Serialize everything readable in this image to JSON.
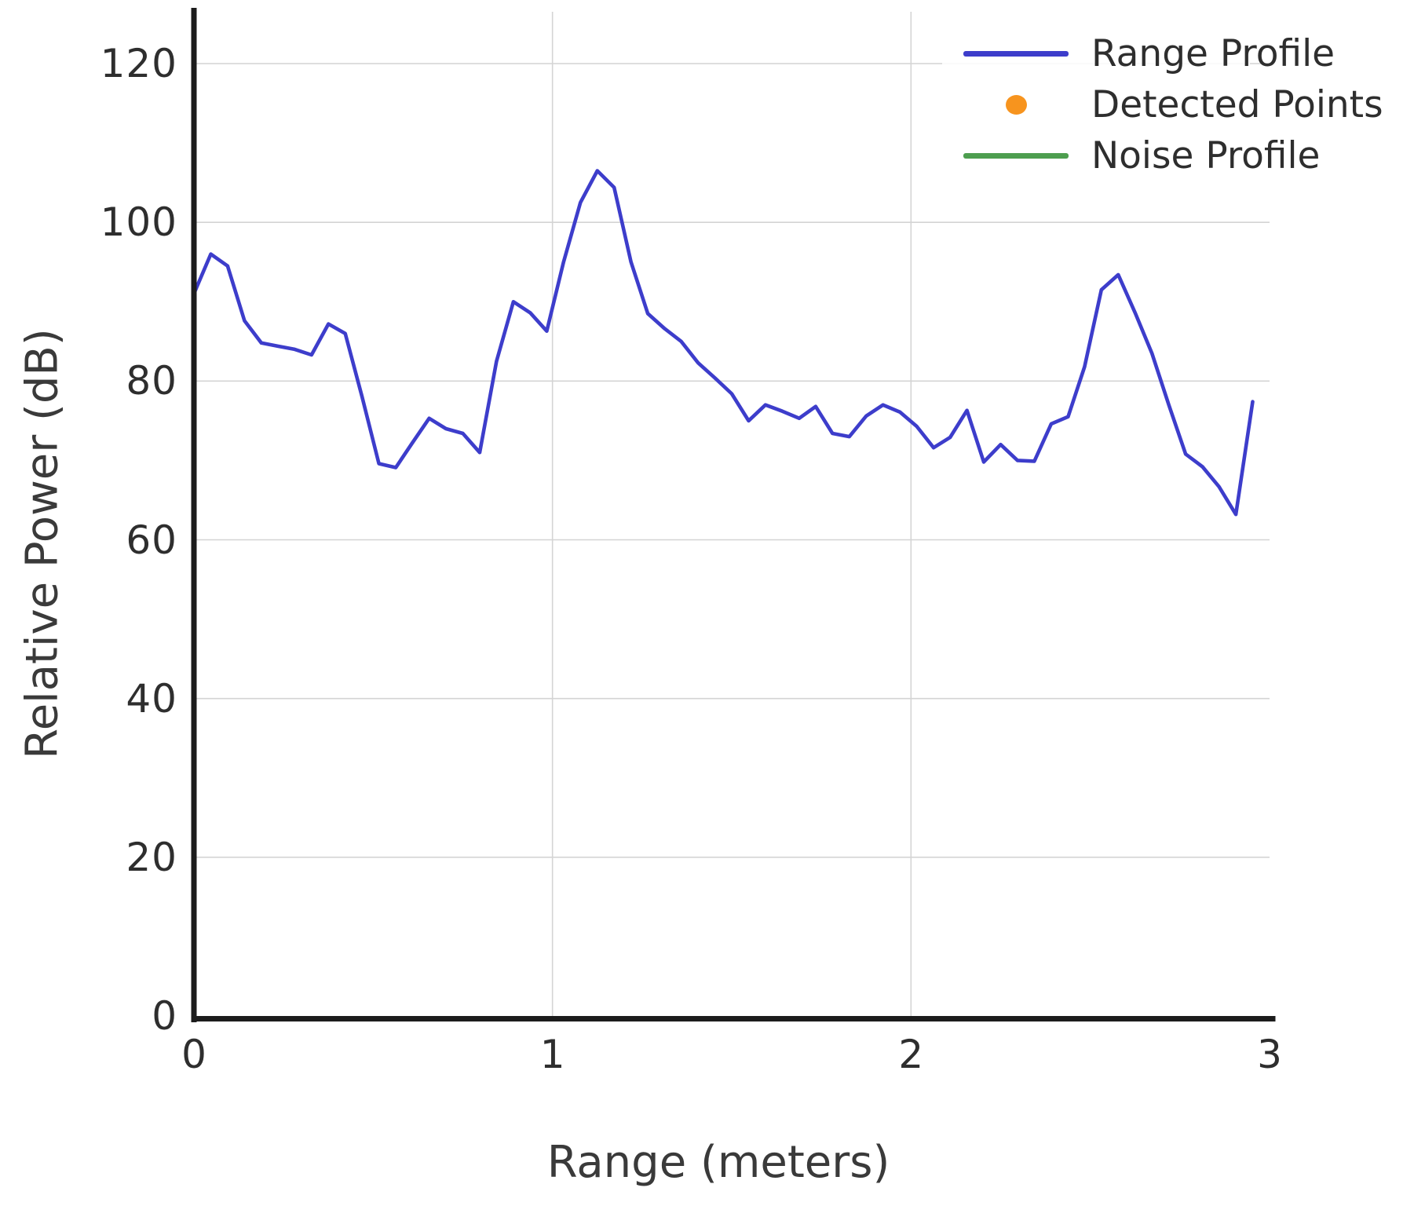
{
  "chart_data": {
    "type": "line",
    "title": "",
    "xlabel": "Range (meters)",
    "ylabel": "Relative Power (dB)",
    "xlim": [
      0,
      3
    ],
    "ylim": [
      0,
      126
    ],
    "xticks": [
      "0",
      "1",
      "2",
      "3"
    ],
    "xtick_values": [
      0,
      1,
      2,
      3
    ],
    "yticks": [
      "0",
      "20",
      "40",
      "60",
      "80",
      "100",
      "120"
    ],
    "ytick_values": [
      0,
      20,
      40,
      60,
      80,
      100,
      120
    ],
    "grid": true,
    "legend_position": "top-right",
    "legend": [
      {
        "label": "Range Profile",
        "type": "line",
        "color": "#3d3dcb"
      },
      {
        "label": "Detected Points",
        "type": "dot",
        "color": "#f7941e"
      },
      {
        "label": "Noise Profile",
        "type": "line",
        "color": "#4d9e4f"
      }
    ],
    "series": [
      {
        "name": "Range Profile",
        "color": "#3d3dcb",
        "points": [
          [
            0.0,
            91.0
          ],
          [
            0.047,
            96.0
          ],
          [
            0.094,
            94.5
          ],
          [
            0.141,
            87.6
          ],
          [
            0.188,
            84.8
          ],
          [
            0.234,
            84.4
          ],
          [
            0.281,
            84.0
          ],
          [
            0.328,
            83.3
          ],
          [
            0.375,
            87.2
          ],
          [
            0.422,
            86.0
          ],
          [
            0.469,
            78.0
          ],
          [
            0.516,
            69.6
          ],
          [
            0.563,
            69.1
          ],
          [
            0.609,
            72.2
          ],
          [
            0.656,
            75.3
          ],
          [
            0.703,
            74.0
          ],
          [
            0.75,
            73.4
          ],
          [
            0.797,
            71.0
          ],
          [
            0.844,
            82.5
          ],
          [
            0.891,
            90.0
          ],
          [
            0.938,
            88.6
          ],
          [
            0.984,
            86.3
          ],
          [
            1.031,
            95.0
          ],
          [
            1.078,
            102.5
          ],
          [
            1.125,
            106.5
          ],
          [
            1.172,
            104.4
          ],
          [
            1.219,
            95.0
          ],
          [
            1.266,
            88.5
          ],
          [
            1.313,
            86.6
          ],
          [
            1.359,
            85.0
          ],
          [
            1.406,
            82.3
          ],
          [
            1.453,
            80.4
          ],
          [
            1.5,
            78.4
          ],
          [
            1.547,
            75.0
          ],
          [
            1.594,
            77.0
          ],
          [
            1.641,
            76.2
          ],
          [
            1.688,
            75.3
          ],
          [
            1.734,
            76.8
          ],
          [
            1.781,
            73.4
          ],
          [
            1.828,
            73.0
          ],
          [
            1.875,
            75.6
          ],
          [
            1.922,
            77.0
          ],
          [
            1.969,
            76.1
          ],
          [
            2.016,
            74.3
          ],
          [
            2.063,
            71.6
          ],
          [
            2.109,
            72.9
          ],
          [
            2.156,
            76.3
          ],
          [
            2.203,
            69.8
          ],
          [
            2.25,
            72.0
          ],
          [
            2.297,
            70.0
          ],
          [
            2.344,
            69.9
          ],
          [
            2.391,
            74.6
          ],
          [
            2.438,
            75.5
          ],
          [
            2.484,
            81.8
          ],
          [
            2.531,
            91.5
          ],
          [
            2.578,
            93.4
          ],
          [
            2.625,
            88.6
          ],
          [
            2.672,
            83.5
          ],
          [
            2.719,
            77.0
          ],
          [
            2.766,
            70.8
          ],
          [
            2.813,
            69.2
          ],
          [
            2.859,
            66.7
          ],
          [
            2.906,
            63.2
          ],
          [
            2.953,
            77.4
          ]
        ]
      }
    ],
    "style": {
      "grid_color": "#d4d4d4",
      "spine_color": "#1c1c1c",
      "background": "#ffffff"
    }
  }
}
